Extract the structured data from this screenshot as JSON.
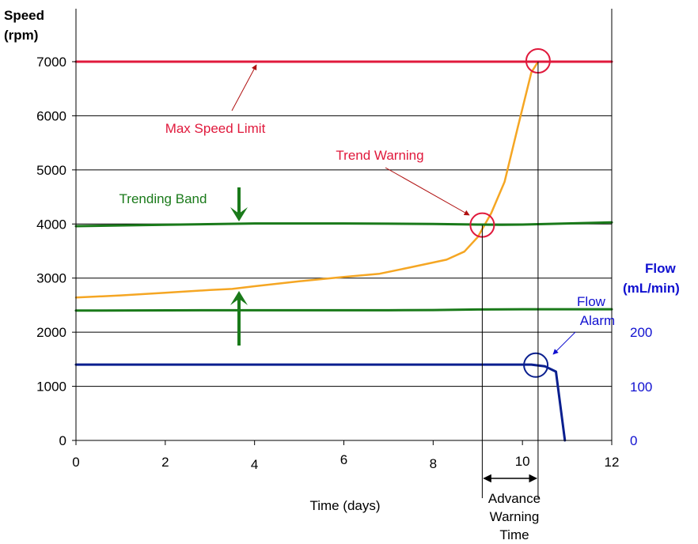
{
  "chart_data": {
    "type": "line",
    "title": "",
    "xlabel": "Time (days)",
    "ylabel": [
      "Speed",
      "(rpm)"
    ],
    "y2label": [
      "Flow",
      "(mL/min)"
    ],
    "xlim": [
      0,
      12
    ],
    "ylim": [
      0,
      7000
    ],
    "y2lim": [
      0,
      200
    ],
    "x_ticks": [
      "0",
      "2",
      "4",
      "6",
      "8",
      "10",
      "12"
    ],
    "y_ticks": [
      "0",
      "1000",
      "2000",
      "3000",
      "4000",
      "5000",
      "6000",
      "7000"
    ],
    "y2_ticks": [
      "0",
      "100",
      "200"
    ],
    "grid": true,
    "colors": {
      "speed": "#f5a623",
      "band": "#1a7a1a",
      "limit": "#e0193c",
      "flow": "#0a1f8f",
      "flow_axis": "#1010d0"
    },
    "series": [
      {
        "key": "speed",
        "axis": "left",
        "values": [
          [
            0,
            2640
          ],
          [
            1,
            2680
          ],
          [
            2,
            2730
          ],
          [
            3,
            2780
          ],
          [
            3.5,
            2800
          ],
          [
            4,
            2850
          ],
          [
            5,
            2940
          ],
          [
            6,
            3020
          ],
          [
            6.8,
            3080
          ],
          [
            7.5,
            3200
          ],
          [
            8.3,
            3340
          ],
          [
            8.7,
            3490
          ],
          [
            9.0,
            3760
          ],
          [
            9.3,
            4200
          ],
          [
            9.6,
            4780
          ],
          [
            9.9,
            5800
          ],
          [
            10.2,
            6800
          ],
          [
            10.35,
            7000
          ],
          [
            12,
            7000
          ]
        ]
      },
      {
        "key": "band_upper",
        "axis": "left",
        "values": [
          [
            0,
            3960
          ],
          [
            2,
            3985
          ],
          [
            4,
            4010
          ],
          [
            6,
            4010
          ],
          [
            7,
            4005
          ],
          [
            8,
            4000
          ],
          [
            9,
            3990
          ],
          [
            9.5,
            3985
          ],
          [
            10,
            3990
          ],
          [
            11,
            4010
          ],
          [
            12,
            4030
          ]
        ]
      },
      {
        "key": "band_lower",
        "axis": "left",
        "values": [
          [
            0,
            2400
          ],
          [
            3,
            2405
          ],
          [
            6,
            2405
          ],
          [
            7,
            2405
          ],
          [
            8,
            2410
          ],
          [
            9,
            2420
          ],
          [
            10,
            2425
          ],
          [
            11,
            2425
          ],
          [
            12,
            2425
          ]
        ]
      },
      {
        "key": "max_speed",
        "axis": "left",
        "values": [
          [
            0,
            7000
          ],
          [
            12,
            7000
          ]
        ]
      },
      {
        "key": "flow",
        "axis": "right",
        "values": [
          [
            0,
            141
          ],
          [
            10.2,
            141
          ],
          [
            10.5,
            138
          ],
          [
            10.75,
            128
          ],
          [
            10.95,
            0
          ]
        ]
      }
    ],
    "annotations": {
      "max_speed": "Max Speed Limit",
      "trend_warning": "Trend Warning",
      "trending_band": "Trending Band",
      "flow_alarm": [
        "Flow",
        "Alarm"
      ],
      "advance_warning": [
        "Advance",
        "Warning",
        "Time"
      ]
    },
    "markers": {
      "trend_warning": {
        "x": 9.1,
        "y": 3980
      },
      "limit_reached": {
        "x": 10.35,
        "y": 7000
      },
      "flow_alarm": {
        "x": 10.3,
        "y": 140
      }
    }
  }
}
